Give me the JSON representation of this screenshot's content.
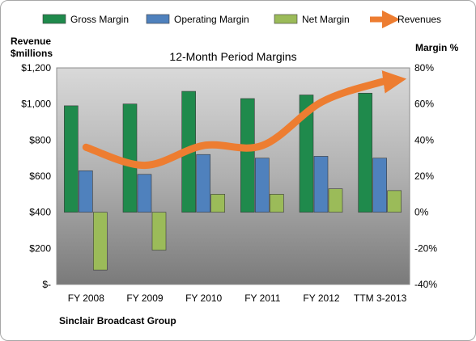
{
  "chart_data": {
    "type": "bar",
    "title": "12-Month Period Margins",
    "left_axis_label": [
      "Revenue",
      "$millions"
    ],
    "right_axis_label": "Margin %",
    "company": "Sinclair Broadcast Group",
    "categories": [
      "FY 2008",
      "FY 2009",
      "FY 2010",
      "FY 2011",
      "FY 2012",
      "TTM 3-2013"
    ],
    "left_axis": {
      "range": [
        0,
        1200
      ],
      "ticks": [
        0,
        200,
        400,
        600,
        800,
        1000,
        1200
      ],
      "tick_labels": [
        "$-",
        "$200",
        "$400",
        "$600",
        "$800",
        "$1,000",
        "$1,200"
      ]
    },
    "right_axis": {
      "range": [
        -40,
        80
      ],
      "ticks": [
        -40,
        -20,
        0,
        20,
        40,
        60,
        80
      ],
      "tick_labels": [
        "-40%",
        "-20%",
        "0%",
        "20%",
        "40%",
        "60%",
        "80%"
      ]
    },
    "legend_position": "top",
    "grid": false,
    "series": [
      {
        "name": "Gross Margin",
        "type": "bar",
        "axis": "right",
        "color": "#1f8a4c",
        "values": [
          59,
          60,
          67,
          63,
          65,
          66
        ]
      },
      {
        "name": "Operating Margin",
        "type": "bar",
        "axis": "right",
        "color": "#4f81bd",
        "values": [
          23,
          21,
          32,
          30,
          31,
          30
        ]
      },
      {
        "name": "Net Margin",
        "type": "bar",
        "axis": "right",
        "color": "#9bbb59",
        "values": [
          -32,
          -21,
          10,
          10,
          13,
          12
        ]
      },
      {
        "name": "Revenues",
        "type": "line",
        "axis": "left",
        "color": "#ed7d31",
        "values": [
          760,
          660,
          770,
          770,
          1010,
          1120
        ]
      }
    ]
  }
}
